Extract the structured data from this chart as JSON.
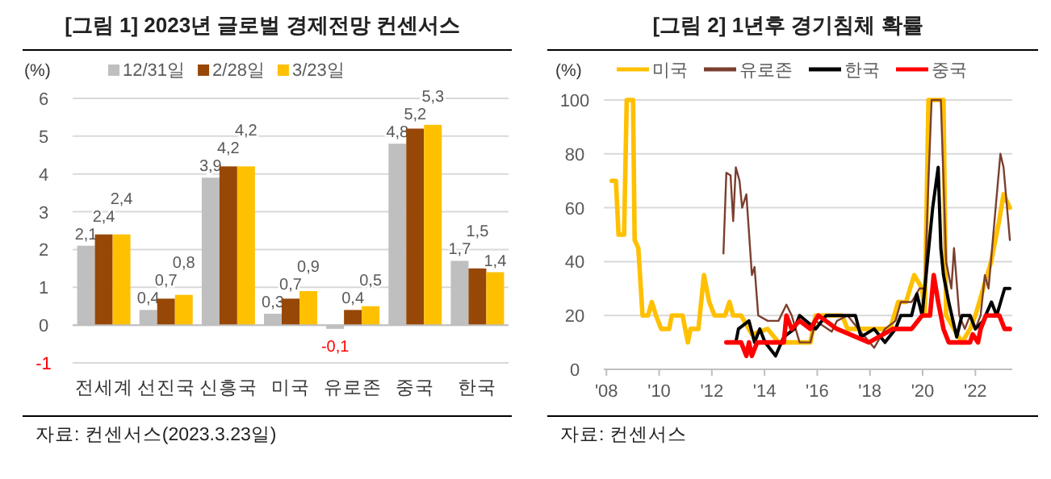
{
  "chart_data": [
    {
      "type": "bar",
      "title": "[그림 1] 2023년 글로벌 경제전망 컨센서스",
      "ylabel": "(%)",
      "categories": [
        "전세계",
        "선진국",
        "신흥국",
        "미국",
        "유로존",
        "중국",
        "한국"
      ],
      "series": [
        {
          "name": "12/31일",
          "color": "#bfbfbf",
          "values": [
            2.1,
            0.4,
            3.9,
            0.3,
            -0.1,
            4.8,
            1.7
          ],
          "value_labels": [
            "2,1",
            "0,4",
            "3,9",
            "0,3",
            "-0,1",
            "4,8",
            "1,7"
          ]
        },
        {
          "name": "2/28일",
          "color": "#974706",
          "values": [
            2.4,
            0.7,
            4.2,
            0.7,
            0.4,
            5.2,
            1.5
          ],
          "value_labels": [
            "2,4",
            "0,7",
            "4,2",
            "0,7",
            "0,4",
            "5,2",
            "1,5"
          ]
        },
        {
          "name": "3/23일",
          "color": "#ffc000",
          "values": [
            2.4,
            0.8,
            4.2,
            0.9,
            0.5,
            5.3,
            1.4
          ],
          "value_labels": [
            "2,4",
            "0,8",
            "4,2",
            "0,9",
            "0,5",
            "5,3",
            "1,4"
          ]
        }
      ],
      "ylim": [
        -1,
        6
      ],
      "yticks": [
        -1,
        0,
        1,
        2,
        3,
        4,
        5,
        6
      ],
      "grid": "y",
      "legend": "top",
      "annotations": [
        "자료: 컨센서스(2023.3.23일)"
      ]
    },
    {
      "type": "line",
      "title": "[그림 2] 1년후 경기침체 확률",
      "ylabel": "(%)",
      "series": [
        {
          "name": "미국",
          "color": "#ffc000",
          "x": [
            2008.2,
            2008.36,
            2008.46,
            2008.67,
            2008.77,
            2009.01,
            2009.07,
            2009.21,
            2009.37,
            2009.58,
            2009.72,
            2009.88,
            2010.08,
            2010.38,
            2010.48,
            2010.89,
            2011.09,
            2011.19,
            2011.49,
            2011.7,
            2011.9,
            2012.1,
            2012.5,
            2012.67,
            2012.81,
            2013.11,
            2013.52,
            2014.12,
            2014.53,
            2014.93,
            2015.74,
            2015.94,
            2016.34,
            2016.95,
            2017.15,
            2017.96,
            2018.77,
            2019.07,
            2019.37,
            2019.68,
            2019.98,
            2020.08,
            2020.22,
            2020.79,
            2020.89,
            2021.19,
            2021.49,
            2021.8,
            2022.0,
            2022.3,
            2022.6,
            2022.9,
            2023.07,
            2023.31
          ],
          "values": [
            70,
            70,
            50,
            50,
            100,
            100,
            48,
            45,
            20,
            20,
            25,
            20,
            15,
            15,
            20,
            20,
            10,
            15,
            15,
            35,
            25,
            20,
            20,
            25,
            20,
            20,
            13,
            15,
            10,
            10,
            10,
            20,
            20,
            20,
            15,
            15,
            15,
            25,
            25,
            35,
            30,
            20,
            100,
            100,
            20,
            15,
            10,
            15,
            20,
            30,
            40,
            55,
            65,
            60
          ]
        },
        {
          "name": "유로존",
          "color": "#7b3f2e",
          "x": [
            2012.44,
            2012.55,
            2012.71,
            2012.81,
            2012.91,
            2013.05,
            2013.15,
            2013.31,
            2013.52,
            2013.62,
            2013.76,
            2014.12,
            2014.53,
            2014.83,
            2015.03,
            2015.33,
            2015.74,
            2015.94,
            2016.55,
            2016.75,
            2017.15,
            2017.56,
            2018.16,
            2018.57,
            2018.97,
            2019.17,
            2019.58,
            2019.88,
            2020.08,
            2020.22,
            2020.34,
            2020.69,
            2020.89,
            2021.09,
            2021.19,
            2021.39,
            2021.6,
            2021.8,
            2022.0,
            2022.2,
            2022.36,
            2022.5,
            2022.77,
            2022.95,
            2023.07,
            2023.31
          ],
          "values": [
            43,
            73,
            72,
            55,
            75,
            70,
            60,
            65,
            35,
            38,
            20,
            18,
            18,
            24,
            20,
            10,
            10,
            18,
            14,
            18,
            20,
            15,
            8,
            15,
            18,
            25,
            25,
            30,
            30,
            70,
            100,
            100,
            40,
            30,
            45,
            20,
            15,
            20,
            15,
            20,
            35,
            30,
            60,
            80,
            75,
            48
          ]
        },
        {
          "name": "한국",
          "color": "#000000",
          "x": [
            2012.91,
            2013.01,
            2013.41,
            2013.62,
            2013.82,
            2014.02,
            2014.42,
            2014.73,
            2015.13,
            2015.33,
            2015.94,
            2016.34,
            2016.75,
            2017.15,
            2017.45,
            2017.66,
            2018.16,
            2018.57,
            2018.97,
            2019.17,
            2019.58,
            2019.78,
            2019.98,
            2020.18,
            2020.38,
            2020.59,
            2020.69,
            2020.79,
            2020.99,
            2021.29,
            2021.49,
            2021.8,
            2022.0,
            2022.3,
            2022.61,
            2022.81,
            2023.11,
            2023.31
          ],
          "values": [
            10,
            15,
            18,
            10,
            15,
            10,
            5,
            12,
            15,
            20,
            15,
            20,
            20,
            20,
            20,
            12,
            15,
            10,
            15,
            20,
            20,
            28,
            20,
            40,
            60,
            75,
            45,
            35,
            25,
            12,
            20,
            20,
            15,
            18,
            25,
            20,
            30,
            30
          ]
        },
        {
          "name": "중국",
          "color": "#ff0000",
          "x": [
            2012.55,
            2013.11,
            2013.31,
            2013.41,
            2013.52,
            2013.72,
            2014.73,
            2014.83,
            2015.03,
            2015.33,
            2015.74,
            2016.04,
            2016.75,
            2017.96,
            2018.87,
            2019.58,
            2019.98,
            2020.28,
            2020.42,
            2020.59,
            2020.79,
            2020.99,
            2021.8,
            2021.9,
            2022.1,
            2022.2,
            2022.4,
            2022.91,
            2023.11,
            2023.31
          ],
          "values": [
            10,
            10,
            5,
            10,
            5,
            10,
            10,
            20,
            15,
            18,
            15,
            20,
            15,
            10,
            15,
            15,
            20,
            20,
            35,
            25,
            15,
            10,
            10,
            13,
            10,
            15,
            20,
            20,
            15,
            15
          ]
        }
      ],
      "xlim": [
        2007.9,
        2023.4
      ],
      "xticks": [
        {
          "value": 2008,
          "label": "'08"
        },
        {
          "value": 2010,
          "label": "'10"
        },
        {
          "value": 2012,
          "label": "'12"
        },
        {
          "value": 2014,
          "label": "'14"
        },
        {
          "value": 2016,
          "label": "'16"
        },
        {
          "value": 2018,
          "label": "'18"
        },
        {
          "value": 2020,
          "label": "'20"
        },
        {
          "value": 2022,
          "label": "'22"
        }
      ],
      "ylim": [
        0,
        100
      ],
      "yticks": [
        0,
        20,
        40,
        60,
        80,
        100
      ],
      "grid": "y",
      "legend": "top",
      "annotations": [
        "자료: 컨센서스"
      ]
    }
  ]
}
